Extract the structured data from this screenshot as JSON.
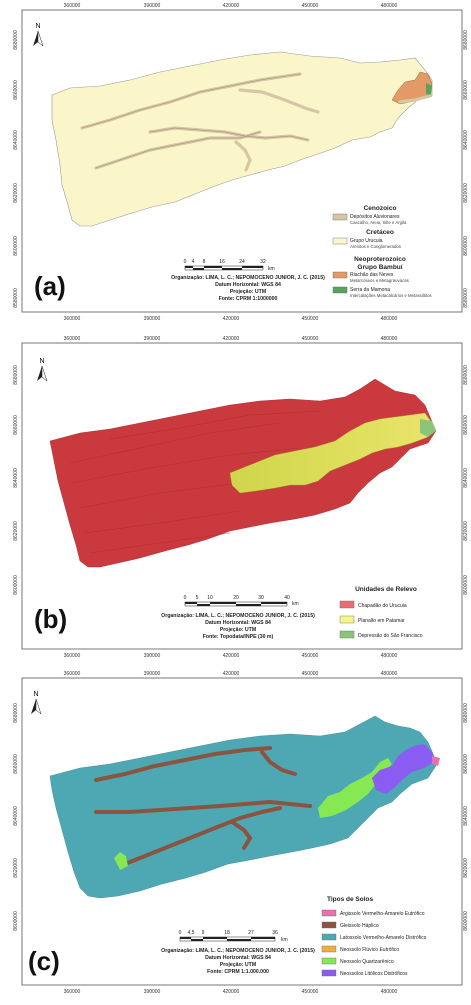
{
  "north_label": "N",
  "colors": {
    "frame": "#555555",
    "alluvial": "#d6c6a4",
    "cretaceous": "#fbf6c9",
    "riachao": "#e39a66",
    "serra": "#57a25c",
    "relief_red": "#c9393d",
    "relief_yellow": "#cfd64a",
    "relief_green": "#8bc57a",
    "soil_pink": "#ea6fae",
    "soil_brown": "#8a5440",
    "soil_teal": "#4da8b4",
    "soil_orange": "#f1ae3c",
    "soil_green": "#86e852",
    "soil_purple": "#8a5cf2"
  },
  "panel_a": {
    "letter": "(a)",
    "x_ticks": [
      "360000",
      "390000",
      "420000",
      "450000",
      "480000"
    ],
    "y_ticks": [
      "8680000",
      "8660000",
      "8640000",
      "8620000",
      "8600000",
      "8580000"
    ],
    "scale_ticks": [
      "0",
      "4",
      "8",
      "16",
      "24",
      "32"
    ],
    "scale_unit": "km",
    "credits": [
      "Organização: LIMA, L. C.; NEPOMOCENO JUNIOR, J. C. (2015)",
      "Datum Horizontal: WGS 84",
      "Projeção: UTM",
      "Fonte: CPRM 1:1000000"
    ],
    "legend": {
      "groups": [
        {
          "title": "Cenozoico",
          "items": [
            {
              "label": "Depósitos Aluvionares",
              "sub": "Cascalho, Areia, Silte e Argila"
            }
          ]
        },
        {
          "title": "Cretáceo",
          "items": [
            {
              "label": "Grupo Urucuia",
              "sub": "Arenitos e Conglomerados"
            }
          ]
        },
        {
          "title": "Neoproterozoico",
          "title2": "Grupo Bambuí",
          "items": [
            {
              "label": "Riachão das Neves",
              "sub": "Metarcóseos e Metagrauvacas"
            },
            {
              "label": "Serra da Mamona",
              "sub": "Intercalações Metacalcários e Metassiltitos"
            }
          ]
        }
      ]
    }
  },
  "panel_b": {
    "letter": "(b)",
    "x_ticks": [
      "360000",
      "390000",
      "420000",
      "450000",
      "480000"
    ],
    "y_ticks": [
      "8680000",
      "8660000",
      "8640000",
      "8620000",
      "8600000"
    ],
    "scale_ticks": [
      "0",
      "5",
      "10",
      "20",
      "30",
      "40"
    ],
    "scale_unit": "km",
    "credits": [
      "Organização: LIMA, L. C.; NEPOMOCENO JUNIOR, J. C. (2015)",
      "Datum Horizontal: WGS 84",
      "Projeção: UTM",
      "Fonte: Topodata/INPE (30 m)"
    ],
    "legend": {
      "title": "Unidades de Relevo",
      "items": [
        "Chapadão do Urucuia",
        "Planalto em Patamar",
        "Depressão do São Francisco"
      ]
    }
  },
  "panel_c": {
    "letter": "(c)",
    "x_ticks": [
      "360000",
      "390000",
      "420000",
      "450000",
      "480000"
    ],
    "y_ticks": [
      "8680000",
      "8660000",
      "8640000",
      "8620000",
      "8600000"
    ],
    "scale_ticks": [
      "0",
      "4,5",
      "9",
      "18",
      "27",
      "36"
    ],
    "scale_unit": "km",
    "credits": [
      "Organização: LIMA, L. C.; NEPOMOCENO JUNIOR, J. C. (2015)",
      "Datum Horizontal: WGS 84",
      "Projeção: UTM",
      "Fonte: CPRM 1:1.000.000"
    ],
    "legend": {
      "title": "Tipos de Solos",
      "items": [
        "Argissolo Vermelho-Amarelo Eutrófico",
        "Gleissolo Háplico",
        "Latossolo Vermelho-Amarelo Distrófico",
        "Neossolo Flúvico Eutrófico",
        "Neossolo Quartzarênico",
        "Neossolos Litólicos Distróficos"
      ]
    }
  }
}
